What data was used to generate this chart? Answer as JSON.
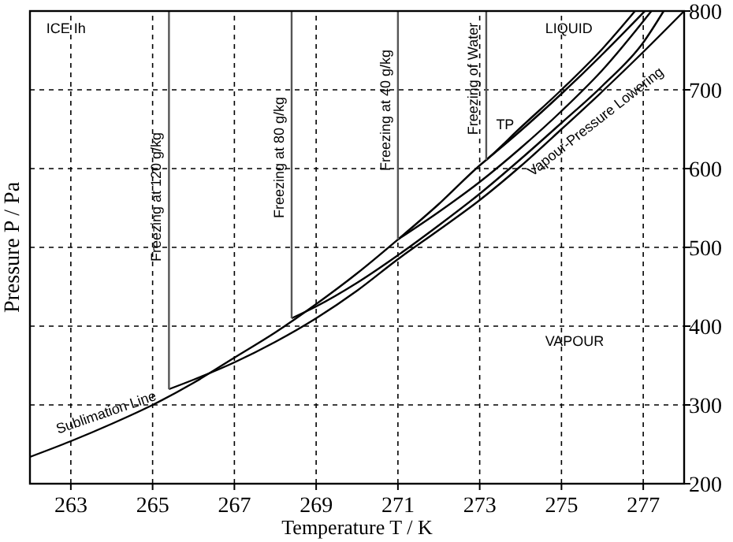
{
  "chart_data": {
    "type": "line",
    "xlabel": "Temperature  T / K",
    "ylabel": "Pressure  P / Pa",
    "xlim": [
      262,
      278
    ],
    "ylim": [
      200,
      800
    ],
    "xticks": [
      263,
      265,
      267,
      269,
      271,
      273,
      275,
      277
    ],
    "yticks": [
      200,
      300,
      400,
      500,
      600,
      700,
      800
    ],
    "grid": true,
    "marker": "none",
    "line_style": "solid",
    "series": [
      {
        "color": "#000000",
        "x": [
          262,
          263,
          264,
          265,
          266,
          267,
          268,
          269,
          270,
          271,
          272,
          273,
          273.16,
          274,
          275,
          276,
          276.8
        ],
        "values": [
          234,
          254,
          276,
          300,
          328,
          360,
          392,
          428,
          467,
          510,
          555,
          604,
          611,
          652,
          700,
          752,
          800
        ]
      },
      {
        "color": "#000000",
        "x": [
          273.16,
          274,
          275,
          276,
          277.04
        ],
        "values": [
          611,
          648,
          695,
          745,
          800
        ]
      },
      {
        "color": "#000000",
        "x": [
          271,
          272,
          273,
          274,
          275,
          276,
          277.2
        ],
        "values": [
          510,
          545,
          583,
          626,
          673,
          725,
          800
        ]
      },
      {
        "color": "#000000",
        "x": [
          268.4,
          269,
          270,
          271,
          272,
          273,
          274,
          275,
          276,
          277,
          277.5
        ],
        "values": [
          410,
          425,
          455,
          490,
          528,
          568,
          612,
          658,
          705,
          760,
          800
        ]
      },
      {
        "color": "#000000",
        "x": [
          265.4,
          266,
          267,
          268,
          269,
          270,
          271,
          272,
          273,
          274,
          275,
          276,
          277,
          278
        ],
        "values": [
          320,
          332,
          354,
          380,
          410,
          445,
          485,
          522,
          560,
          603,
          650,
          698,
          748,
          800
        ]
      },
      {
        "color": "#555555",
        "x": [
          265.4,
          265.4
        ],
        "values": [
          320,
          800
        ]
      },
      {
        "color": "#555555",
        "x": [
          268.4,
          268.4
        ],
        "values": [
          410,
          800
        ]
      },
      {
        "color": "#555555",
        "x": [
          271,
          271
        ],
        "values": [
          510,
          800
        ]
      },
      {
        "color": "#555555",
        "x": [
          273.16,
          273.16
        ],
        "values": [
          611,
          800
        ]
      }
    ],
    "annotations": [
      "ICE Ih",
      "LIQUID",
      "VAPOUR",
      "TP",
      "Sublimation Line",
      "Vapour-Pressure Lowering",
      "Freezing at 120 g/kg",
      "Freezing at 80 g/kg",
      "Freezing at 40 g/kg",
      "Freezing of Water"
    ]
  }
}
